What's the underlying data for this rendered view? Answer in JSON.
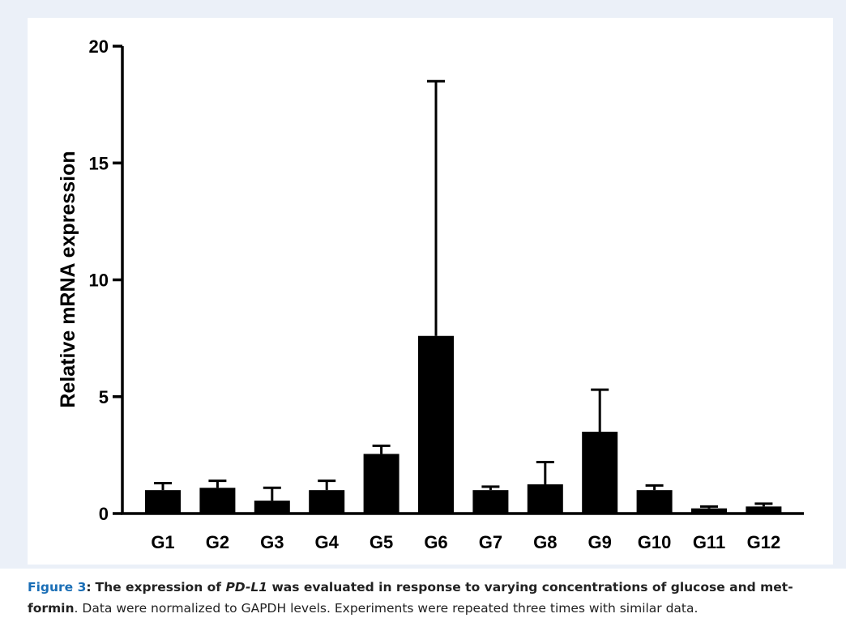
{
  "chart_data": {
    "type": "bar",
    "ylabel": "Relative mRNA expression",
    "ylim": [
      0,
      20
    ],
    "yticks": [
      0,
      5,
      10,
      15,
      20
    ],
    "categories": [
      "G1",
      "G2",
      "G3",
      "G4",
      "G5",
      "G6",
      "G7",
      "G8",
      "G9",
      "G10",
      "G11",
      "G12"
    ],
    "values": [
      1.0,
      1.1,
      0.55,
      1.0,
      2.55,
      7.6,
      1.0,
      1.25,
      3.5,
      1.0,
      0.22,
      0.3
    ],
    "error_upper": [
      1.3,
      1.4,
      1.1,
      1.4,
      2.9,
      18.5,
      1.15,
      2.2,
      5.3,
      1.2,
      0.3,
      0.42
    ],
    "bar_color": "#000000",
    "grid": false
  },
  "caption": {
    "figure_label": "Figure 3",
    "title_part1": "The expression of ",
    "title_gene": "PD-L1",
    "title_part2": " was evaluated in response to varying concentrations of glucose and met- formin",
    "body": ". Data were normalized to GAPDH levels. Experiments were repeated three times with similar data."
  },
  "colors": {
    "panel_background": "#ebf0f8",
    "figure_label": "#1a6eb6"
  }
}
